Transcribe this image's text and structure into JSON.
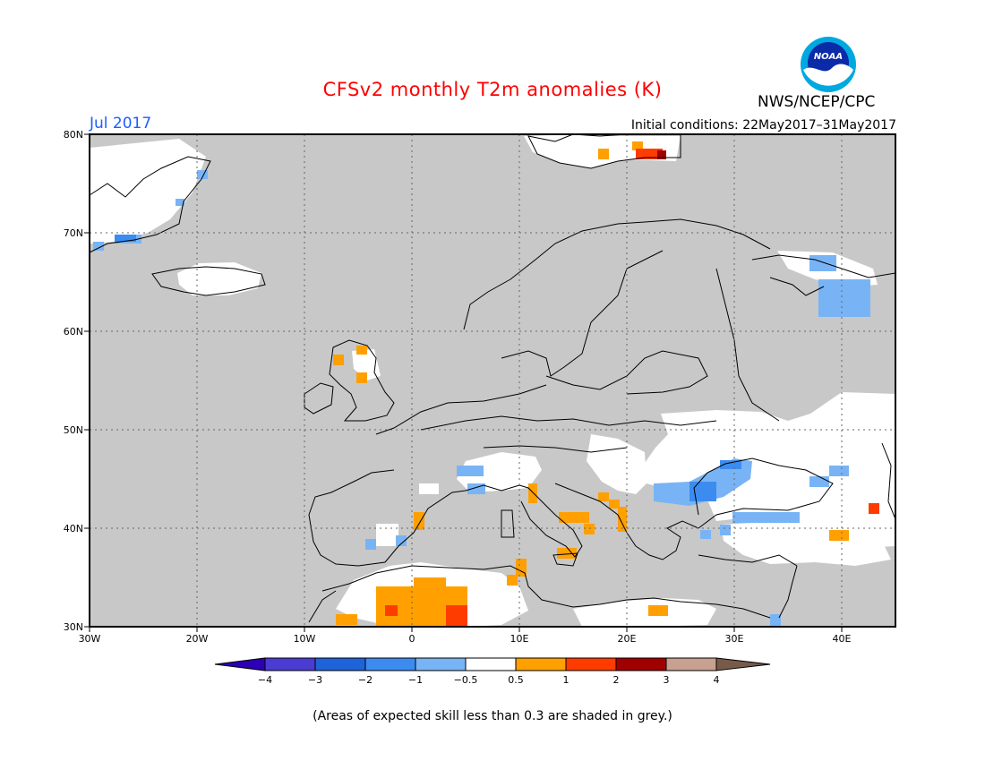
{
  "title": "CFSv2 monthly T2m anomalies (K)",
  "agency": "NWS/NCEP/CPC",
  "logo_text": "NOAA",
  "month": "Jul 2017",
  "init_conditions": "Initial conditions: 22May2017–31May2017",
  "footnote": "(Areas of expected skill less than 0.3 are shaded in grey.)",
  "map": {
    "lon_range": [
      -30,
      45
    ],
    "lat_range": [
      30,
      80
    ],
    "grid": "dotted",
    "lat_ticks": [
      {
        "value": 80,
        "label": "80N"
      },
      {
        "value": 70,
        "label": "70N"
      },
      {
        "value": 60,
        "label": "60N"
      },
      {
        "value": 50,
        "label": "50N"
      },
      {
        "value": 40,
        "label": "40N"
      },
      {
        "value": 30,
        "label": "30N"
      }
    ],
    "lon_ticks": [
      {
        "value": -30,
        "label": "30W"
      },
      {
        "value": -20,
        "label": "20W"
      },
      {
        "value": -10,
        "label": "10W"
      },
      {
        "value": 0,
        "label": "0"
      },
      {
        "value": 10,
        "label": "10E"
      },
      {
        "value": 20,
        "label": "20E"
      },
      {
        "value": 30,
        "label": "30E"
      },
      {
        "value": 40,
        "label": "40E"
      }
    ],
    "colors": {
      "low_skill": "#c8c8c8",
      "background": "#ffffff",
      "coast": "#000000"
    }
  },
  "legend": {
    "colors": [
      "#2c00b4",
      "#4a3cd2",
      "#1e64d8",
      "#3c8cf0",
      "#78b4f5",
      "#ffffff",
      "#ffa000",
      "#ff3c00",
      "#a00000",
      "#c8a090",
      "#785a4b"
    ],
    "labels": [
      "−4",
      "−3",
      "−2",
      "−1",
      "−0.5",
      "0.5",
      "1",
      "2",
      "3",
      "4"
    ]
  }
}
